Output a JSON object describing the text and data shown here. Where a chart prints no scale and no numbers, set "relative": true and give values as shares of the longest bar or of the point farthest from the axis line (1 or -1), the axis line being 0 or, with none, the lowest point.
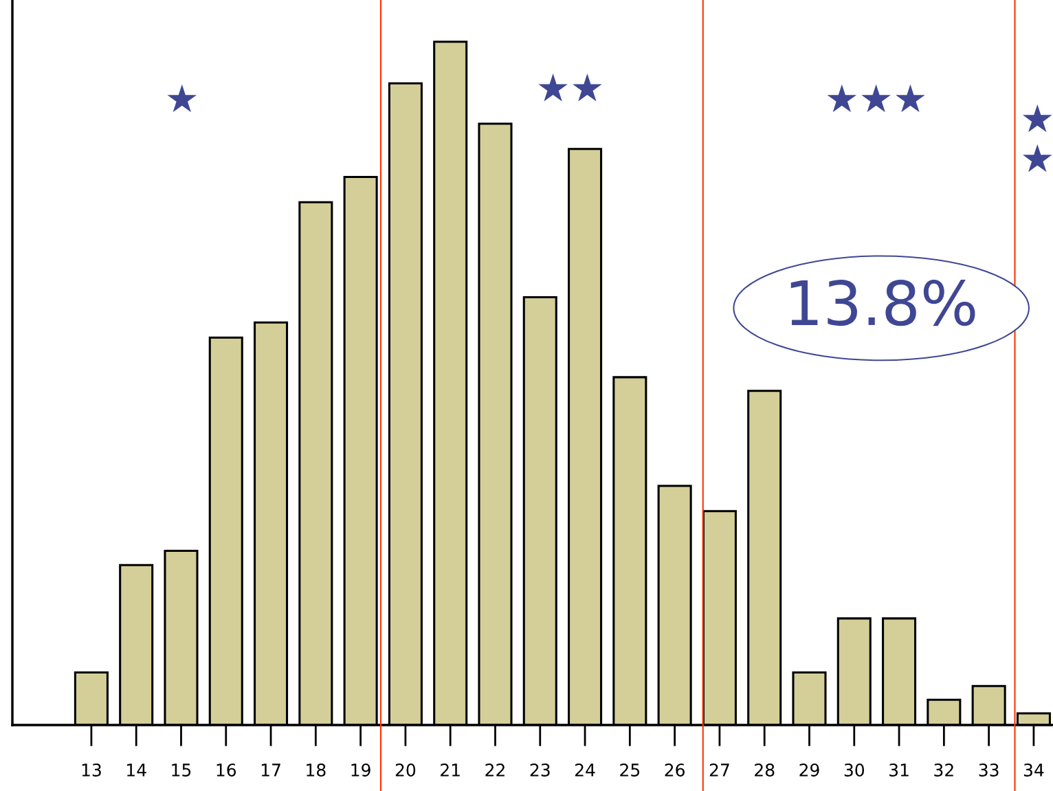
{
  "chart_data": {
    "type": "bar",
    "relative": true,
    "x": [
      13,
      14,
      15,
      16,
      17,
      18,
      19,
      20,
      21,
      22,
      23,
      24,
      25,
      26,
      27,
      28,
      29,
      30,
      31,
      32,
      33,
      34
    ],
    "values": [
      0.077,
      0.234,
      0.255,
      0.567,
      0.589,
      0.765,
      0.802,
      0.939,
      1,
      0.88,
      0.626,
      0.843,
      0.509,
      0.35,
      0.313,
      0.489,
      0.077,
      0.156,
      0.156,
      0.037,
      0.057,
      0.017
    ],
    "color": "#d4cf98",
    "xlim": [
      11.24,
      34.43
    ],
    "xticks": [
      13,
      14,
      15,
      16,
      17,
      18,
      19,
      20,
      21,
      22,
      23,
      24,
      25,
      26,
      27,
      28,
      29,
      30,
      31,
      32,
      33,
      34
    ],
    "ref_lines": [
      {
        "axis": "x",
        "value": 19.45,
        "color": "#ff3300"
      },
      {
        "axis": "x",
        "value": 26.63,
        "color": "#ff3300"
      },
      {
        "axis": "x",
        "value": 33.58,
        "color": "#ff3300"
      }
    ],
    "annotations": [
      "★",
      "★★",
      "★★★",
      "★\n★",
      "13.8%"
    ],
    "grid": false
  }
}
